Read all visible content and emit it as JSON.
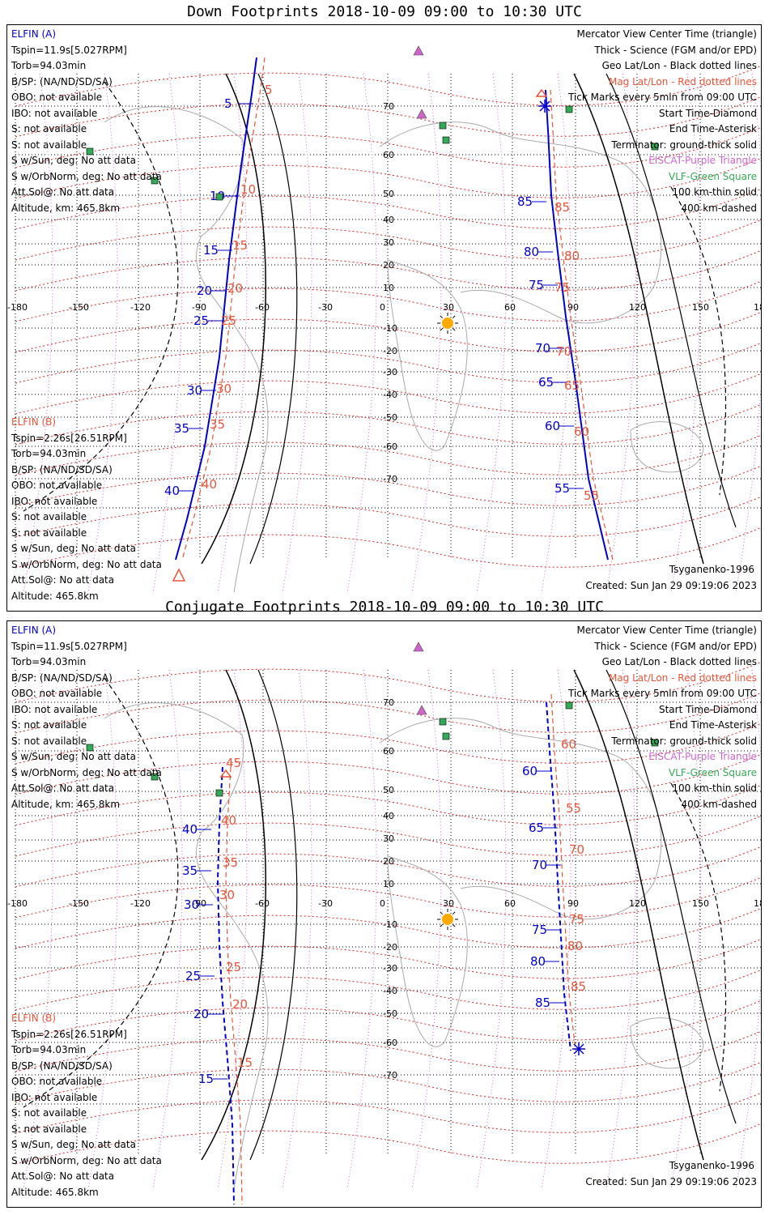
{
  "panels": [
    {
      "title": "Down Footprints 2018-10-09 09:00 to 10:30 UTC",
      "elfin_a": [
        "ELFIN (A)",
        "Tspin=11.9s[5.027RPM]",
        "Torb=94.03min",
        "B/SP: (NA/ND/SD/SA)",
        "OBO: not available",
        "IBO: not available",
        "S: not available",
        "S: not available",
        "S w/Sun, deg: No att data",
        "S w/OrbNorm, deg: No att data",
        "Att.Sol@: No att data",
        "Altitude, km: 465.8km"
      ],
      "elfin_b": [
        "ELFIN (B)",
        "Tspin=2.26s[26.51RPM]",
        "Torb=94.03min",
        "B/SP: (NA/ND/SD/SA)",
        "OBO: not available",
        "IBO: not available",
        "S: not available",
        "S: not available",
        "S w/Sun, deg: No att data",
        "S w/OrbNorm, deg: No att data",
        "Att.Sol@: No att data",
        "Altitude: 465.8km"
      ],
      "track_a_labels": [
        [
          "5",
          "284",
          "102"
        ],
        [
          "10",
          "266",
          "216"
        ],
        [
          "15",
          "258",
          "283"
        ],
        [
          "20",
          "250",
          "333"
        ],
        [
          "25",
          "246",
          "370"
        ],
        [
          "30",
          "238",
          "456"
        ],
        [
          "35",
          "222",
          "503"
        ],
        [
          "40",
          "210",
          "580"
        ],
        [
          "85",
          "646",
          "223"
        ],
        [
          "80",
          "654",
          "285"
        ],
        [
          "75",
          "660",
          "326"
        ],
        [
          "70",
          "668",
          "404"
        ],
        [
          "65",
          "672",
          "446"
        ],
        [
          "60",
          "680",
          "500"
        ],
        [
          "55",
          "692",
          "577"
        ]
      ],
      "track_b_labels": [
        [
          "5",
          "318",
          "85"
        ],
        [
          "10",
          "288",
          "208"
        ],
        [
          "15",
          "278",
          "277"
        ],
        [
          "20",
          "272",
          "330"
        ],
        [
          "25",
          "264",
          "370"
        ],
        [
          "30",
          "258",
          "454"
        ],
        [
          "35",
          "250",
          "498"
        ],
        [
          "40",
          "240",
          "572"
        ],
        [
          "85",
          "676",
          "230"
        ],
        [
          "80",
          "688",
          "290"
        ],
        [
          "75",
          "676",
          "329"
        ],
        [
          "70",
          "678",
          "408"
        ],
        [
          "65",
          "688",
          "450"
        ],
        [
          "60",
          "700",
          "507"
        ],
        [
          "55",
          "712",
          "586"
        ]
      ],
      "created": "Created: Sun Jan 29 09:19:06 2023"
    },
    {
      "title": "Conjugate Footprints 2018-10-09 09:00 to 10:30 UTC",
      "elfin_a": [
        "ELFIN (A)",
        "Tspin=11.9s[5.027RPM]",
        "Torb=94.03min",
        "B/SP: (NA/ND/SD/SA)",
        "OBO: not available",
        "IBO: not available",
        "S: not available",
        "S: not available",
        "S w/Sun, deg: No att data",
        "S w/OrbNorm, deg: No att data",
        "Att.Sol@: No att data",
        "Altitude, km: 465.8km"
      ],
      "elfin_b": [
        "ELFIN (B)",
        "Tspin=2.26s[26.51RPM]",
        "Torb=94.03min",
        "B/SP: (NA/ND/SD/SA)",
        "OBO: not available",
        "IBO: not available",
        "S: not available",
        "S: not available",
        "S w/Sun, deg: No att data",
        "S w/OrbNorm, deg: No att data",
        "Att.Sol@: No att data",
        "Altitude: 465.8km"
      ],
      "track_a_labels": [
        [
          "40",
          "232",
          "262"
        ],
        [
          "35",
          "232",
          "313"
        ],
        [
          "30",
          "234",
          "355"
        ],
        [
          "25",
          "236",
          "443"
        ],
        [
          "20",
          "246",
          "490"
        ],
        [
          "15",
          "252",
          "570"
        ],
        [
          "60",
          "652",
          "190"
        ],
        [
          "65",
          "660",
          "260"
        ],
        [
          "70",
          "664",
          "306"
        ],
        [
          "75",
          "664",
          "386"
        ],
        [
          "80",
          "662",
          "425"
        ],
        [
          "85",
          "668",
          "476"
        ]
      ],
      "track_b_labels": [
        [
          "45",
          "270",
          "180"
        ],
        [
          "40",
          "264",
          "251"
        ],
        [
          "35",
          "266",
          "303"
        ],
        [
          "30",
          "262",
          "343"
        ],
        [
          "25",
          "270",
          "432"
        ],
        [
          "20",
          "278",
          "478"
        ],
        [
          "15",
          "284",
          "550"
        ],
        [
          "60",
          "684",
          "157"
        ],
        [
          "55",
          "690",
          "236"
        ],
        [
          "70",
          "694",
          "287"
        ],
        [
          "75",
          "694",
          "373"
        ],
        [
          "80",
          "692",
          "406"
        ],
        [
          "85",
          "696",
          "456"
        ]
      ],
      "created": "Created: Sun Jan 29 09:19:06 2023"
    }
  ],
  "legend_right": [
    "Mercator View Center Time (triangle)",
    "Thick - Science (FGM and/or EPD)",
    "Geo Lat/Lon - Black dotted lines",
    "Mag Lat/Lon - Red dotted lines",
    "Tick Marks every 5min from 09:00 UTC",
    "Start Time-Diamond",
    "End Time-Asterisk",
    "Terminator: ground-thick solid",
    "EISCAT-Purple Triangle",
    "VLF-Green Square",
    "100 km-thin solid",
    "400 km-dashed"
  ],
  "model": "Tsyganenko-1996",
  "lon_ticks": [
    "-180",
    "-150",
    "-120",
    "-90",
    "-60",
    "-30",
    "0",
    "30",
    "60",
    "90",
    "120",
    "150",
    "180"
  ],
  "lat_ticks": [
    "70",
    "60",
    "50",
    "40",
    "30",
    "20",
    "10",
    "-10",
    "-20",
    "-30",
    "-40",
    "-50",
    "-60",
    "-70"
  ],
  "colors": {
    "sc_a": "#0000cc",
    "sc_b": "#e8553a",
    "eiscat": "#cc66cc",
    "vlf": "#33aa55",
    "coast": "#aaaaaa"
  }
}
